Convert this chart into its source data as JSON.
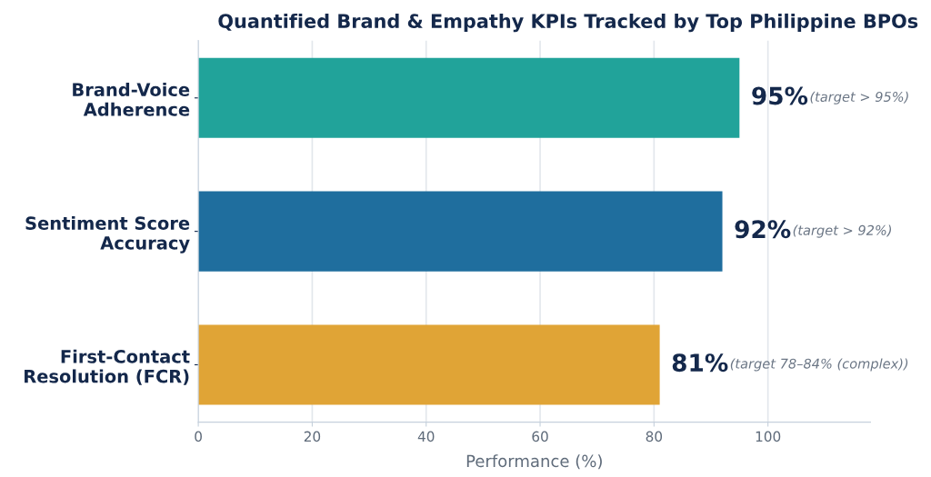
{
  "chart_data": {
    "type": "bar",
    "orientation": "horizontal",
    "title": "Quantified Brand & Empathy KPIs Tracked by Top Philippine BPOs",
    "categories": [
      "Brand-Voice\nAdherence",
      "Sentiment Score\nAccuracy",
      "First-Contact\nResolution (FCR)"
    ],
    "values": [
      95,
      92,
      81
    ],
    "colors": [
      "#21a39a",
      "#1f6e9e",
      "#e0a436"
    ],
    "value_labels": [
      "95%",
      "92%",
      "81%"
    ],
    "annotations": [
      "(target > 95%)",
      "(target > 92%)",
      "(target 78–84% (complex))"
    ],
    "xlabel": "Performance (%)",
    "xlim": [
      0,
      118
    ],
    "xticks": [
      0,
      20,
      40,
      60,
      80,
      100
    ],
    "grid": "x"
  }
}
